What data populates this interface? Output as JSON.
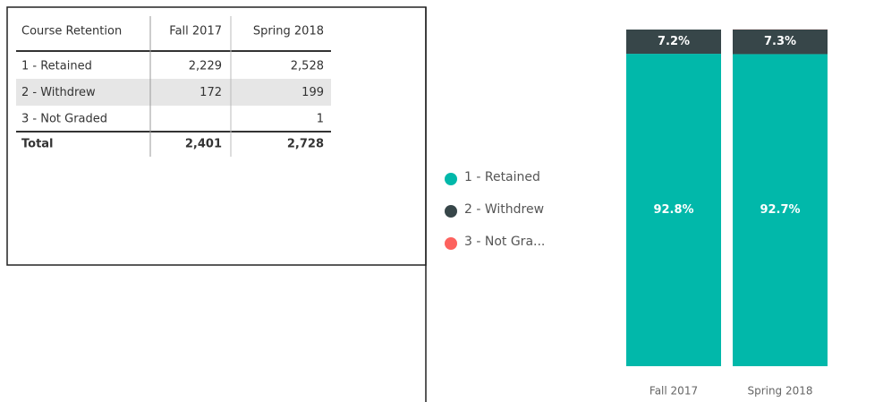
{
  "table": {
    "header": [
      "Course Retention",
      "Fall 2017",
      "Spring 2018"
    ],
    "rows": [
      [
        "1 - Retained",
        "2,229",
        "2,528"
      ],
      [
        "2 - Withdrew",
        "172",
        "199"
      ],
      [
        "3 - Not Graded",
        null,
        "1"
      ]
    ],
    "total": [
      "Total",
      "2,401",
      "2,728"
    ]
  },
  "chart_data": {
    "type": "bar",
    "stacked": true,
    "categories": [
      "Fall 2017",
      "Spring 2018"
    ],
    "ylim": [
      0,
      100
    ],
    "series": [
      {
        "name": "1 - Retained",
        "color": "#01b8aa",
        "values": [
          92.8,
          92.7
        ],
        "value_labels": [
          "92.8%",
          "92.7%"
        ]
      },
      {
        "name": "2 - Withdrew",
        "color": "#374649",
        "values": [
          7.2,
          7.3
        ],
        "value_labels": [
          "7.2%",
          "7.3%"
        ]
      },
      {
        "name": "3 - Not Gra...",
        "color": "#fd625e",
        "values": [
          null,
          0.04
        ],
        "value_labels": [
          null,
          null
        ]
      }
    ]
  }
}
